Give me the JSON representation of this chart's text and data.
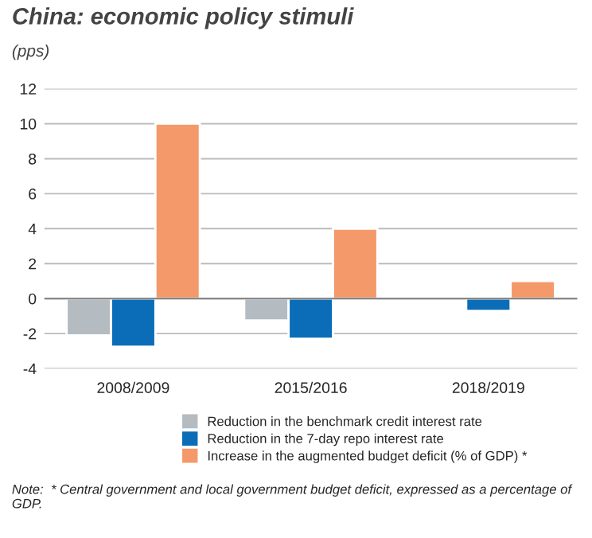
{
  "chart_data": {
    "type": "bar",
    "title": "China: economic policy stimuli",
    "subtitle": "(pps)",
    "categories": [
      "2008/2009",
      "2015/2016",
      "2018/2019"
    ],
    "series": [
      {
        "name": "Reduction in the benchmark credit interest rate",
        "color": "#b4bcc2",
        "values": [
          -2.1,
          -1.25,
          null
        ]
      },
      {
        "name": "Reduction in the 7-day repo interest rate",
        "color": "#0b6db7",
        "values": [
          -2.75,
          -2.3,
          -0.7
        ]
      },
      {
        "name": "Increase in the augmented budget deficit (% of GDP) *",
        "color": "#f4996a",
        "values": [
          10,
          4,
          1
        ]
      }
    ],
    "ylim": [
      -4,
      12
    ],
    "yticks": [
      -4,
      -2,
      0,
      2,
      4,
      6,
      8,
      10,
      12
    ],
    "grid": "y",
    "legend": "bottom",
    "annotations": [
      "Note:  * Central government and local government budget deficit, expressed as a percentage of GDP."
    ]
  }
}
